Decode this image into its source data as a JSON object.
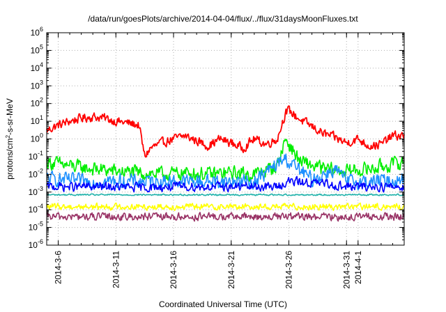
{
  "chart_data": {
    "type": "line",
    "title": "/data/run/goesPlots/archive/2014-04-04/flux/../flux/31daysMoonFluxes.txt",
    "xlabel": "Coordinated Universal Time (UTC)",
    "ylabel": {
      "base": "protons/cm",
      "sup": "2",
      "rest": "-s-sr-MeV"
    },
    "y_scale": "log",
    "ylim_exponents": [
      -6,
      6
    ],
    "y_tick_labels": [
      {
        "base": "10",
        "exp": "-6"
      },
      {
        "base": "10",
        "exp": "-5"
      },
      {
        "base": "10",
        "exp": "-4"
      },
      {
        "base": "10",
        "exp": "-3"
      },
      {
        "base": "10",
        "exp": "-2"
      },
      {
        "base": "10",
        "exp": "-1"
      },
      {
        "base": "10",
        "exp": "0"
      },
      {
        "base": "10",
        "exp": "1"
      },
      {
        "base": "10",
        "exp": "2"
      },
      {
        "base": "10",
        "exp": "3"
      },
      {
        "base": "10",
        "exp": "4"
      },
      {
        "base": "10",
        "exp": "5"
      },
      {
        "base": "10",
        "exp": "6"
      }
    ],
    "xlim": [
      "2014-03-05",
      "2014-04-05"
    ],
    "x_ticks": [
      "2014-3-6",
      "2014-3-11",
      "2014-3-16",
      "2014-3-21",
      "2014-3-26",
      "2014-3-31",
      "2014-4-1"
    ],
    "grid": true,
    "series": [
      {
        "color": "#ff0000",
        "x": [
          "2014-03-05",
          "2014-03-06",
          "2014-03-07",
          "2014-03-08",
          "2014-03-09",
          "2014-03-10",
          "2014-03-11",
          "2014-03-12",
          "2014-03-13",
          "2014-03-13.5",
          "2014-03-14",
          "2014-03-15",
          "2014-03-16",
          "2014-03-17",
          "2014-03-18",
          "2014-03-19",
          "2014-03-20",
          "2014-03-21",
          "2014-03-22",
          "2014-03-23",
          "2014-03-24",
          "2014-03-25",
          "2014-03-25.7",
          "2014-03-26",
          "2014-03-27",
          "2014-03-28",
          "2014-03-29",
          "2014-03-30",
          "2014-03-31",
          "2014-04-01",
          "2014-04-02",
          "2014-04-03",
          "2014-04-04",
          "2014-04-05"
        ],
        "values": [
          3,
          6,
          10,
          15,
          18,
          15,
          10,
          8,
          6,
          0.1,
          0.3,
          0.6,
          1,
          1.5,
          0.8,
          0.4,
          1,
          0.6,
          0.3,
          1,
          0.5,
          1,
          30,
          40,
          12,
          5,
          2,
          1.2,
          0.6,
          1,
          0.4,
          0.5,
          1.5,
          1.5
        ]
      },
      {
        "color": "#00ee00",
        "x": [
          "2014-03-05",
          "2014-03-07",
          "2014-03-09",
          "2014-03-11",
          "2014-03-13",
          "2014-03-15",
          "2014-03-17",
          "2014-03-19",
          "2014-03-21",
          "2014-03-23",
          "2014-03-25",
          "2014-03-25.7",
          "2014-03-26",
          "2014-03-27",
          "2014-03-29",
          "2014-03-31",
          "2014-04-02",
          "2014-04-05"
        ],
        "values": [
          0.05,
          0.03,
          0.02,
          0.015,
          0.012,
          0.01,
          0.012,
          0.01,
          0.012,
          0.01,
          0.03,
          1,
          0.5,
          0.05,
          0.02,
          0.015,
          0.02,
          0.05
        ]
      },
      {
        "color": "#1e90ff",
        "x": [
          "2014-03-05",
          "2014-03-08",
          "2014-03-11",
          "2014-03-14",
          "2014-03-17",
          "2014-03-20",
          "2014-03-23",
          "2014-03-25.7",
          "2014-03-26",
          "2014-03-28",
          "2014-03-30",
          "2014-03-31",
          "2014-04-02",
          "2014-04-05"
        ],
        "values": [
          0.006,
          0.004,
          0.004,
          0.004,
          0.004,
          0.004,
          0.004,
          0.08,
          0.05,
          0.005,
          0.02,
          0.004,
          0.004,
          0.005
        ]
      },
      {
        "color": "#0000ff",
        "x": [
          "2014-03-05",
          "2014-03-09",
          "2014-03-13",
          "2014-03-17",
          "2014-03-21",
          "2014-03-25",
          "2014-03-26",
          "2014-03-29",
          "2014-03-31",
          "2014-04-02",
          "2014-04-05"
        ],
        "values": [
          0.002,
          0.002,
          0.0018,
          0.002,
          0.002,
          0.002,
          0.004,
          0.003,
          0.002,
          0.002,
          0.002
        ]
      },
      {
        "color": "#20b2aa",
        "x": [
          "2014-03-05",
          "2014-03-10",
          "2014-03-15",
          "2014-03-20",
          "2014-03-25",
          "2014-03-30",
          "2014-04-05"
        ],
        "values": [
          0.0007,
          0.0007,
          0.0007,
          0.0007,
          0.0007,
          0.0007,
          0.0007
        ]
      },
      {
        "color": "#ffff00",
        "x": [
          "2014-03-05",
          "2014-03-10",
          "2014-03-15",
          "2014-03-20",
          "2014-03-25",
          "2014-03-30",
          "2014-04-05"
        ],
        "values": [
          0.00015,
          0.00015,
          0.00015,
          0.00015,
          0.00015,
          0.00015,
          0.00015
        ]
      },
      {
        "color": "#993366",
        "x": [
          "2014-03-05",
          "2014-03-10",
          "2014-03-15",
          "2014-03-20",
          "2014-03-25",
          "2014-03-30",
          "2014-04-05"
        ],
        "values": [
          4e-05,
          4e-05,
          4e-05,
          4e-05,
          4e-05,
          4e-05,
          4e-05
        ]
      }
    ]
  }
}
